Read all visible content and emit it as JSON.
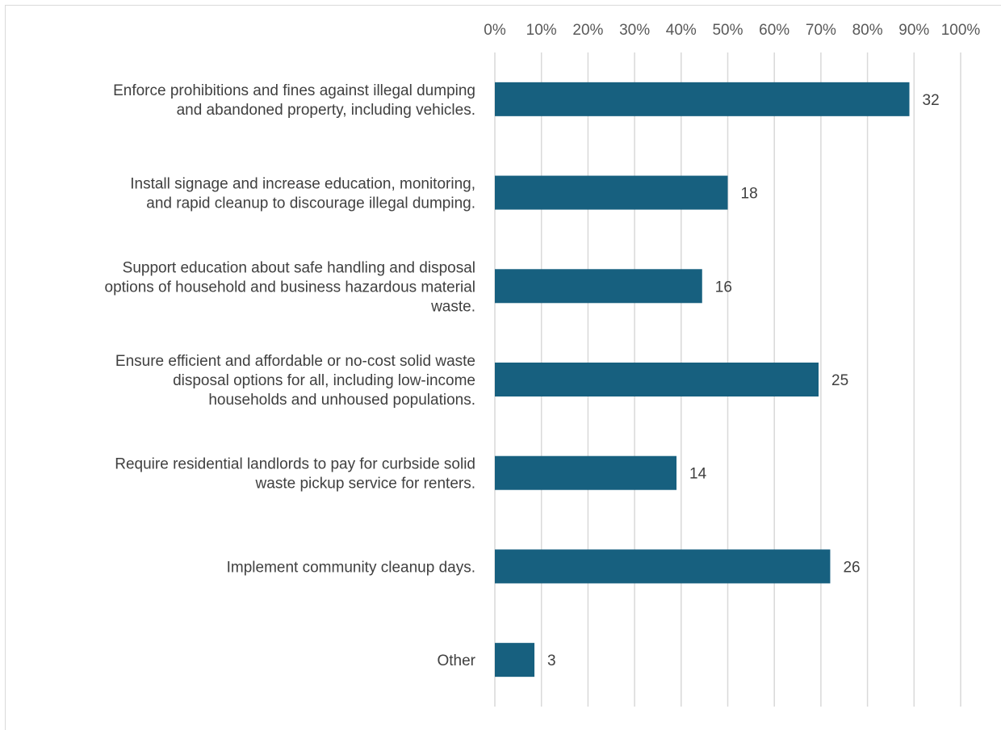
{
  "chart_data": {
    "type": "bar",
    "orientation": "horizontal",
    "title": "",
    "xlabel": "",
    "ylabel": "",
    "xlim": [
      0,
      100
    ],
    "x_axis_position": "top",
    "x_tick_labels": [
      "0%",
      "10%",
      "20%",
      "30%",
      "40%",
      "50%",
      "60%",
      "70%",
      "80%",
      "90%",
      "100%"
    ],
    "grid": true,
    "legend": "none",
    "bar_color": "#17607f",
    "categories": [
      [
        "Enforce prohibitions and fines against illegal dumping",
        "and abandoned property, including vehicles."
      ],
      [
        "Install signage and increase education, monitoring,",
        "and rapid cleanup to discourage illegal dumping."
      ],
      [
        "Support education about safe handling and disposal",
        "options of household and business hazardous material",
        "waste."
      ],
      [
        "Ensure efficient and affordable or no-cost solid waste",
        "disposal options for all, including low-income",
        "households and unhoused populations."
      ],
      [
        "Require residential landlords to pay for curbside solid",
        "waste pickup service for renters."
      ],
      [
        "Implement community cleanup days."
      ],
      [
        "Other"
      ]
    ],
    "values_percent": [
      89,
      50,
      44.5,
      69.5,
      39,
      72,
      8.5
    ],
    "data_labels": [
      "32",
      "18",
      "16",
      "25",
      "14",
      "26",
      "3"
    ]
  }
}
